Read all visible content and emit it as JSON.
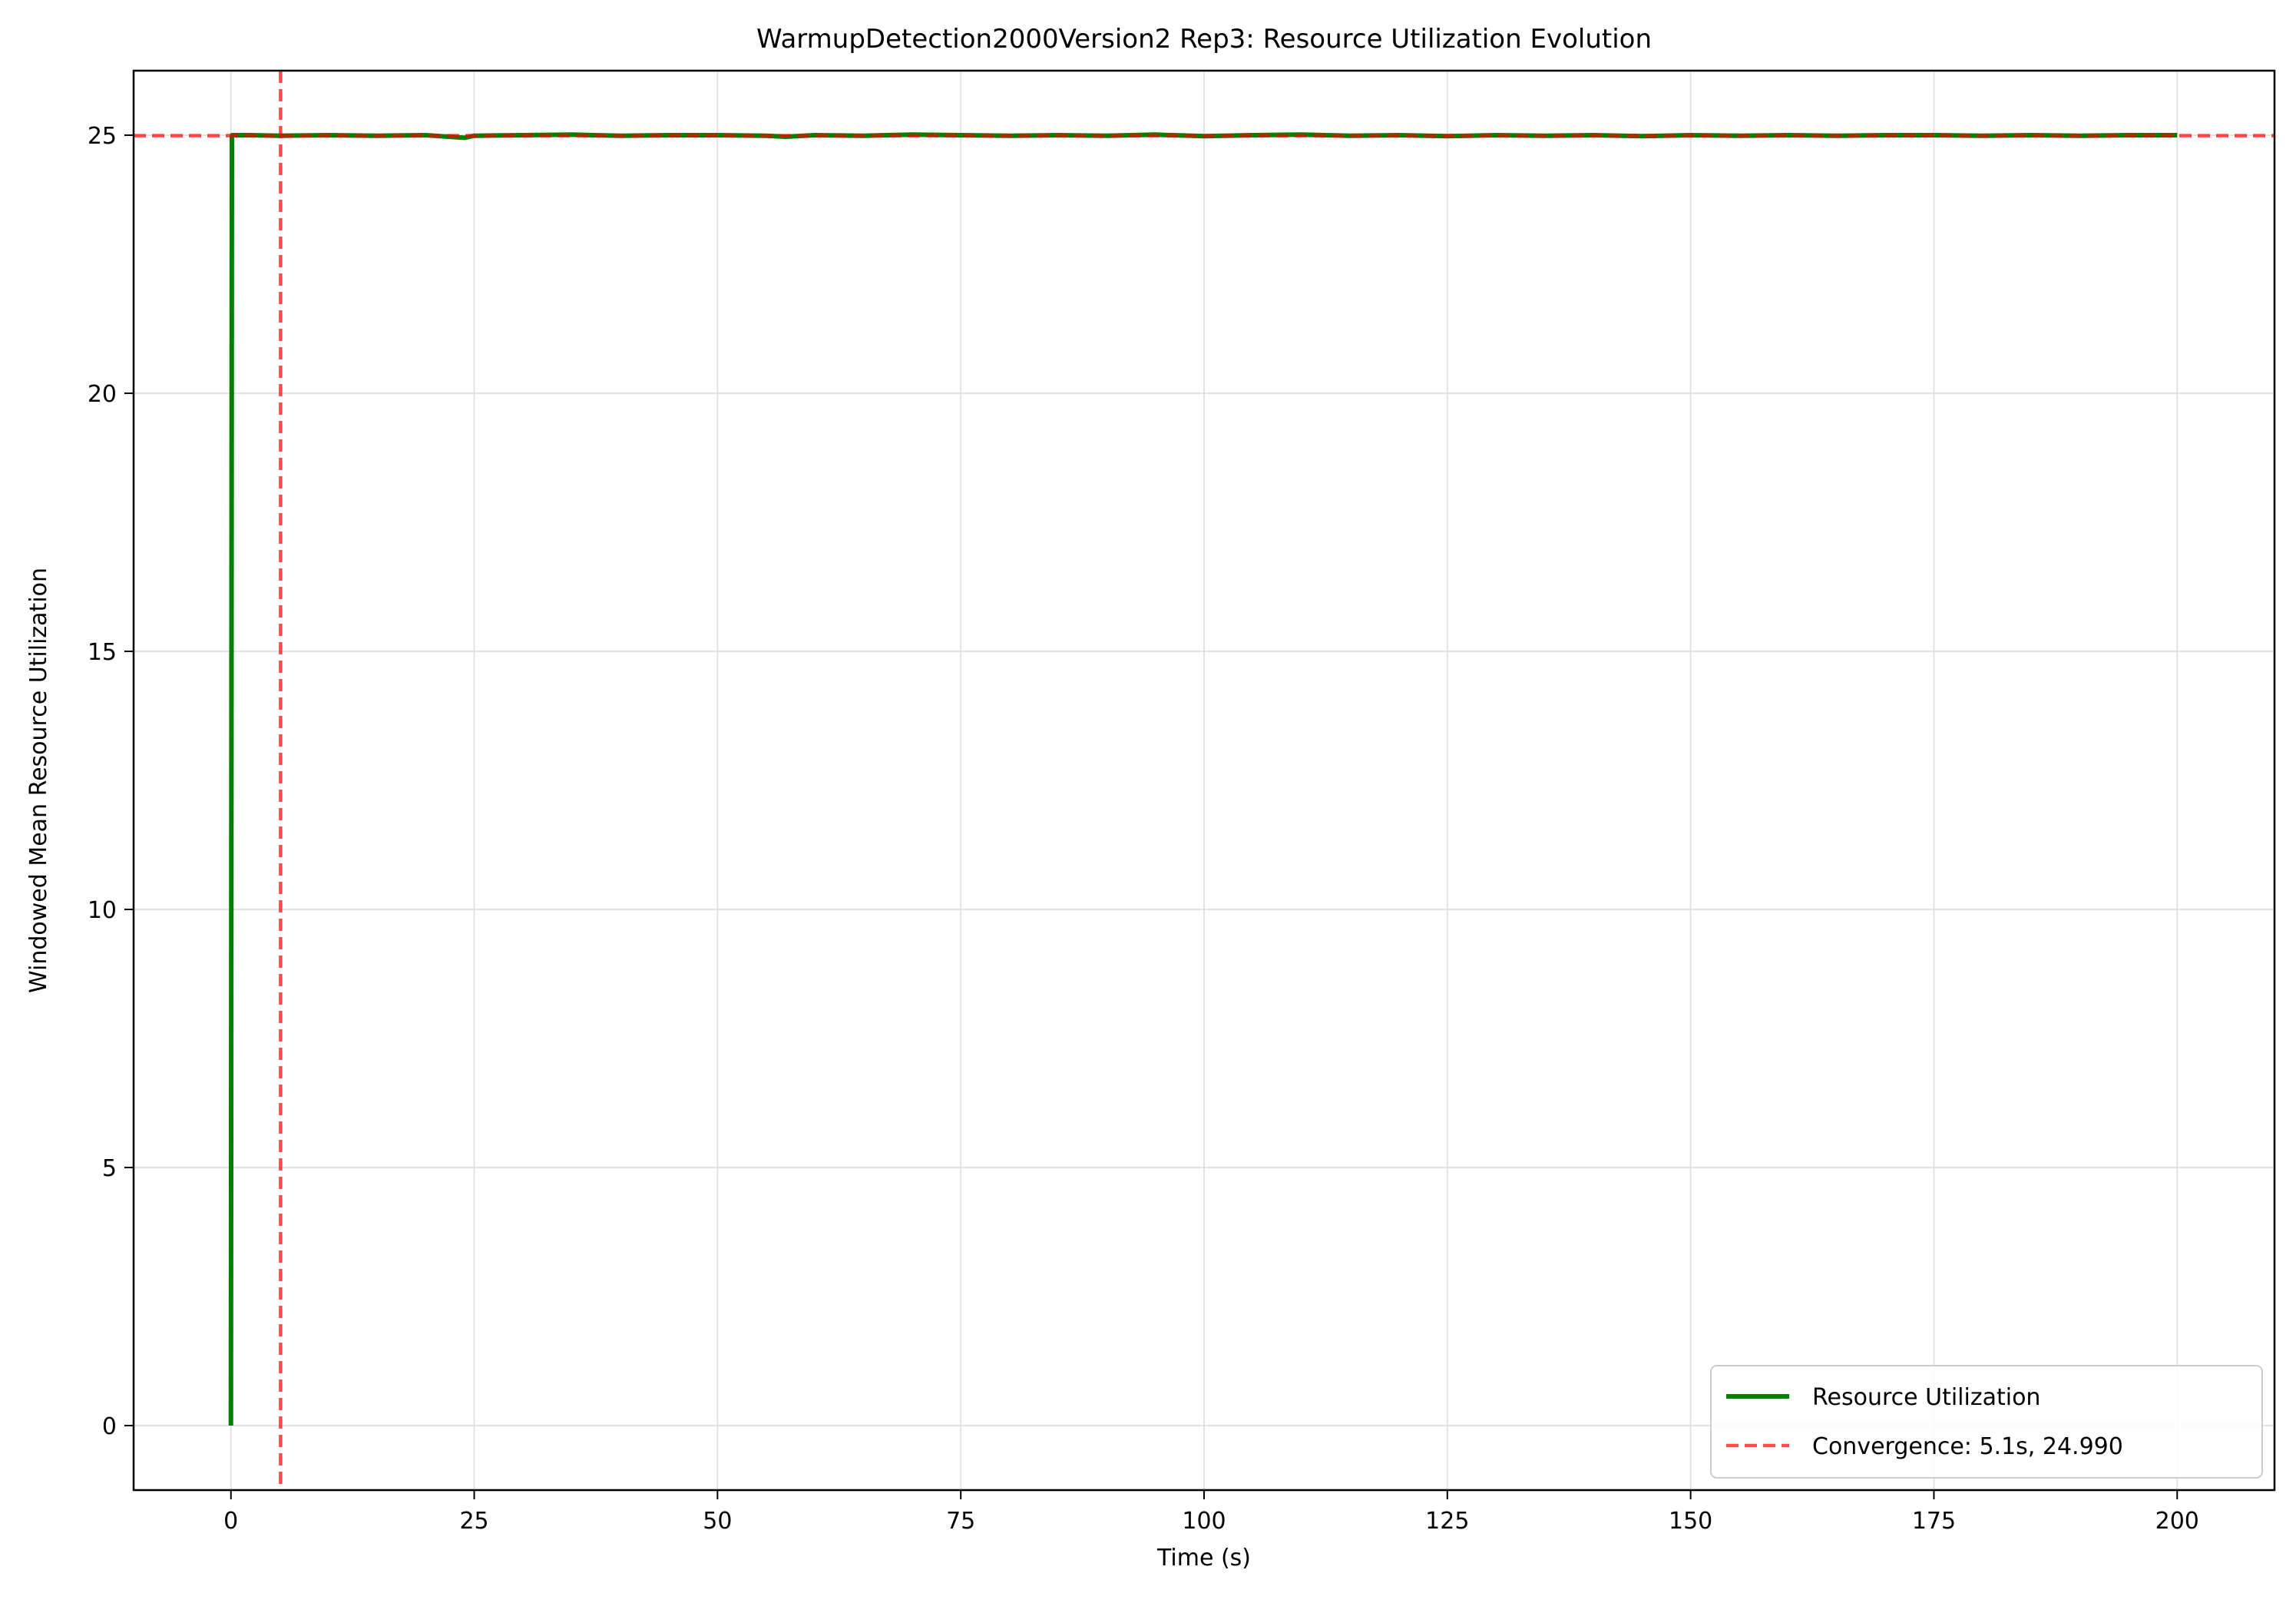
{
  "chart_data": {
    "type": "line",
    "title": "WarmupDetection2000Version2 Rep3: Resource Utilization Evolution",
    "xlabel": "Time (s)",
    "ylabel": "Windowed Mean Resource Utilization",
    "xlim": [
      -10,
      210
    ],
    "ylim": [
      -1.25,
      26.25
    ],
    "xticks": [
      0,
      25,
      50,
      75,
      100,
      125,
      150,
      175,
      200
    ],
    "yticks": [
      0,
      5,
      10,
      15,
      20,
      25
    ],
    "grid": true,
    "legend_position": "bottom-right",
    "series": [
      {
        "name": "Resource Utilization",
        "color": "#008000",
        "style": "solid",
        "x": [
          0,
          0.1,
          2,
          5,
          10,
          15,
          20,
          24,
          25,
          30,
          35,
          40,
          45,
          50,
          55,
          57,
          60,
          65,
          70,
          75,
          80,
          85,
          90,
          95,
          100,
          105,
          110,
          115,
          120,
          125,
          130,
          135,
          140,
          145,
          150,
          155,
          160,
          165,
          170,
          175,
          180,
          185,
          190,
          195,
          200
        ],
        "y": [
          0,
          25.0,
          25.0,
          24.99,
          25.0,
          24.99,
          25.0,
          24.95,
          24.99,
          25.0,
          25.01,
          24.99,
          25.0,
          25.0,
          24.99,
          24.97,
          25.0,
          24.99,
          25.01,
          25.0,
          24.99,
          25.0,
          24.99,
          25.01,
          24.98,
          25.0,
          25.01,
          24.99,
          25.0,
          24.98,
          25.0,
          24.99,
          25.0,
          24.98,
          25.0,
          24.99,
          25.0,
          24.99,
          25.0,
          25.0,
          24.99,
          25.0,
          24.99,
          25.0,
          25.0
        ]
      }
    ],
    "reference_lines": [
      {
        "label": "Convergence: 5.1s, 24.990",
        "color": "#ff0000",
        "style": "dashed",
        "x": 5.1,
        "y": 24.99
      }
    ]
  }
}
